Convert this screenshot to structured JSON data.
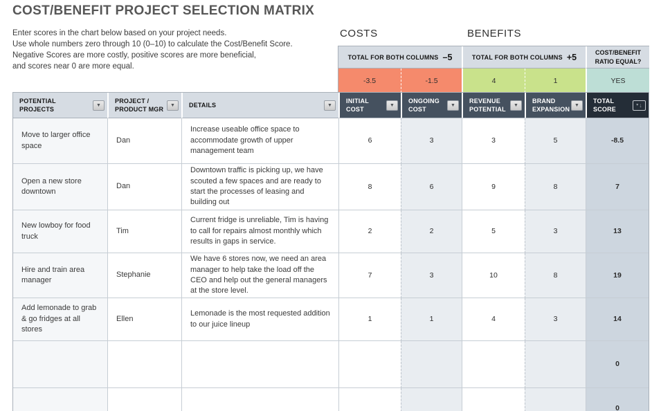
{
  "page": {
    "title": "COST/BENEFIT PROJECT SELECTION MATRIX"
  },
  "intro": {
    "lines": [
      "Enter scores in the chart below based on your project needs.",
      "Use whole numbers zero through 10 (0–10) to calculate the Cost/Benefit Score.",
      "Negative Scores are more costly, positive scores are more beneficial,",
      "and scores near 0 are more equal."
    ]
  },
  "sections": {
    "costs_label": "COSTS",
    "benefits_label": "BENEFITS"
  },
  "summary": {
    "costs_header": "TOTAL FOR BOTH COLUMNS",
    "costs_target": "–5",
    "benefits_header": "TOTAL FOR BOTH COLUMNS",
    "benefits_target": "+5",
    "ratio_header": "COST/BENEFIT RATIO EQUAL?",
    "costs_values": [
      "-3.5",
      "-1.5"
    ],
    "benefits_values": [
      "4",
      "1"
    ],
    "ratio_value": "YES"
  },
  "icons": {
    "filter": "▼",
    "filter_small": "▾",
    "sort_down": "↓"
  },
  "colors": {
    "cost_cell": "#f58a6c",
    "benefit_cell": "#c9e28b",
    "ratio_cell": "#bdded6",
    "header_light": "#d6dce3",
    "header_dark": "#45515f",
    "header_darkest": "#242d37",
    "column_shade": "#e9edf1",
    "total_column_shade": "#cdd6df"
  },
  "table": {
    "columns": [
      "POTENTIAL PROJECTS",
      "PROJECT / PRODUCT MGR",
      "DETAILS",
      "INITIAL COST",
      "ONGOING COST",
      "REVENUE POTENTIAL",
      "BRAND EXPANSION",
      "TOTAL SCORE"
    ],
    "rows": [
      {
        "project": "Move to larger office space",
        "manager": "Dan",
        "details": "Increase useable office space to accommodate growth of upper management team",
        "initial_cost": "6",
        "ongoing_cost": "3",
        "revenue_potential": "3",
        "brand_expansion": "5",
        "total_score": "-8.5"
      },
      {
        "project": "Open a new store downtown",
        "manager": "Dan",
        "details": "Downtown traffic is picking up, we have scouted a few spaces and are ready to start the processes of leasing and building out",
        "initial_cost": "8",
        "ongoing_cost": "6",
        "revenue_potential": "9",
        "brand_expansion": "8",
        "total_score": "7"
      },
      {
        "project": "New lowboy for food truck",
        "manager": "Tim",
        "details": "Current fridge is unreliable, Tim is having to call for repairs almost monthly which results in gaps in service.",
        "initial_cost": "2",
        "ongoing_cost": "2",
        "revenue_potential": "5",
        "brand_expansion": "3",
        "total_score": "13"
      },
      {
        "project": "Hire and train area manager",
        "manager": "Stephanie",
        "details": "We have 6 stores now, we need an area manager to help take the load off the CEO and help out the general managers at the store level.",
        "initial_cost": "7",
        "ongoing_cost": "3",
        "revenue_potential": "10",
        "brand_expansion": "8",
        "total_score": "19"
      },
      {
        "project": "Add lemonade to grab & go fridges at all stores",
        "manager": "Ellen",
        "details": "Lemonade is the most requested addition to our juice lineup",
        "initial_cost": "1",
        "ongoing_cost": "1",
        "revenue_potential": "4",
        "brand_expansion": "3",
        "total_score": "14"
      },
      {
        "project": "",
        "manager": "",
        "details": "",
        "initial_cost": "",
        "ongoing_cost": "",
        "revenue_potential": "",
        "brand_expansion": "",
        "total_score": "0"
      },
      {
        "project": "",
        "manager": "",
        "details": "",
        "initial_cost": "",
        "ongoing_cost": "",
        "revenue_potential": "",
        "brand_expansion": "",
        "total_score": "0"
      }
    ]
  }
}
